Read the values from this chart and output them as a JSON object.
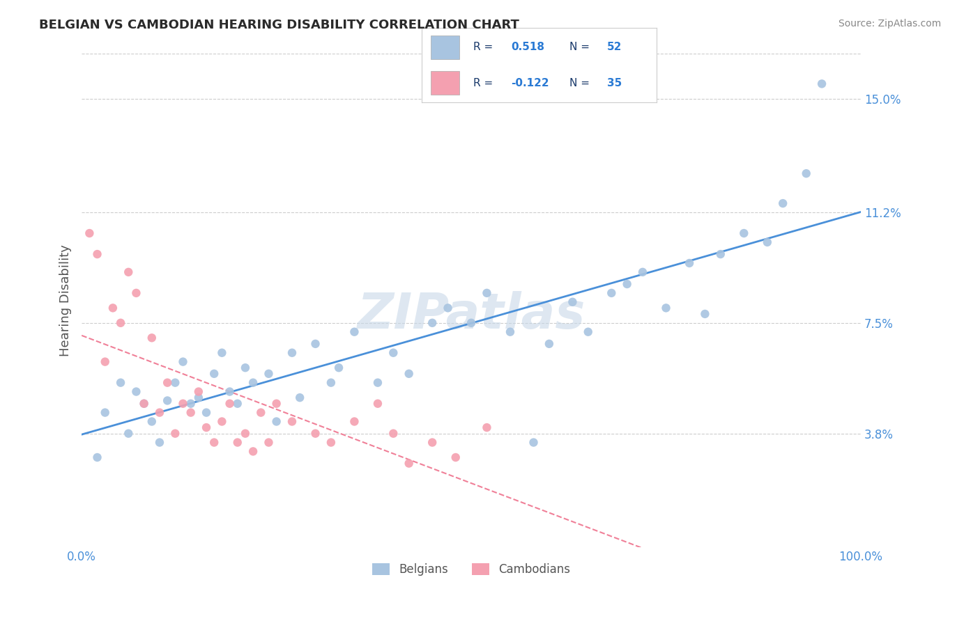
{
  "title": "BELGIAN VS CAMBODIAN HEARING DISABILITY CORRELATION CHART",
  "source": "Source: ZipAtlas.com",
  "xlabel": "",
  "ylabel": "Hearing Disability",
  "xlim": [
    0,
    100
  ],
  "ylim": [
    0,
    16.5
  ],
  "yticks": [
    3.8,
    7.5,
    11.2,
    15.0
  ],
  "xticks": [
    0,
    100
  ],
  "xticklabels": [
    "0.0%",
    "100.0%"
  ],
  "yticklabels": [
    "3.8%",
    "7.5%",
    "11.2%",
    "15.0%"
  ],
  "belgian_color": "#a8c4e0",
  "cambodian_color": "#f4a0b0",
  "belgian_line_color": "#4a90d9",
  "cambodian_line_color": "#f08098",
  "watermark_color": "#c8d8e8",
  "legend_R_color": "#1a3a6b",
  "legend_N_color": "#2a7ad4",
  "R_belgian": 0.518,
  "N_belgian": 52,
  "R_cambodian": -0.122,
  "N_cambodian": 35,
  "grid_color": "#cccccc",
  "title_color": "#2a2a2a",
  "axis_label_color": "#4a90d9",
  "belgian_x": [
    2,
    3,
    5,
    6,
    7,
    8,
    9,
    10,
    11,
    12,
    13,
    14,
    15,
    16,
    17,
    18,
    19,
    20,
    21,
    22,
    24,
    25,
    27,
    28,
    30,
    32,
    33,
    35,
    38,
    40,
    42,
    45,
    47,
    50,
    52,
    55,
    58,
    60,
    63,
    65,
    68,
    70,
    72,
    75,
    78,
    80,
    82,
    85,
    88,
    90,
    93,
    95
  ],
  "belgian_y": [
    3.0,
    4.5,
    5.5,
    3.8,
    5.2,
    4.8,
    4.2,
    3.5,
    4.9,
    5.5,
    6.2,
    4.8,
    5.0,
    4.5,
    5.8,
    6.5,
    5.2,
    4.8,
    6.0,
    5.5,
    5.8,
    4.2,
    6.5,
    5.0,
    6.8,
    5.5,
    6.0,
    7.2,
    5.5,
    6.5,
    5.8,
    7.5,
    8.0,
    7.5,
    8.5,
    7.2,
    3.5,
    6.8,
    8.2,
    7.2,
    8.5,
    8.8,
    9.2,
    8.0,
    9.5,
    7.8,
    9.8,
    10.5,
    10.2,
    11.5,
    12.5,
    15.5
  ],
  "cambodian_x": [
    1,
    2,
    3,
    4,
    5,
    6,
    7,
    8,
    9,
    10,
    11,
    12,
    13,
    14,
    15,
    16,
    17,
    18,
    19,
    20,
    21,
    22,
    23,
    24,
    25,
    27,
    30,
    32,
    35,
    38,
    40,
    42,
    45,
    48,
    52
  ],
  "cambodian_y": [
    10.5,
    9.8,
    6.2,
    8.0,
    7.5,
    9.2,
    8.5,
    4.8,
    7.0,
    4.5,
    5.5,
    3.8,
    4.8,
    4.5,
    5.2,
    4.0,
    3.5,
    4.2,
    4.8,
    3.5,
    3.8,
    3.2,
    4.5,
    3.5,
    4.8,
    4.2,
    3.8,
    3.5,
    4.2,
    4.8,
    3.8,
    2.8,
    3.5,
    3.0,
    4.0
  ]
}
